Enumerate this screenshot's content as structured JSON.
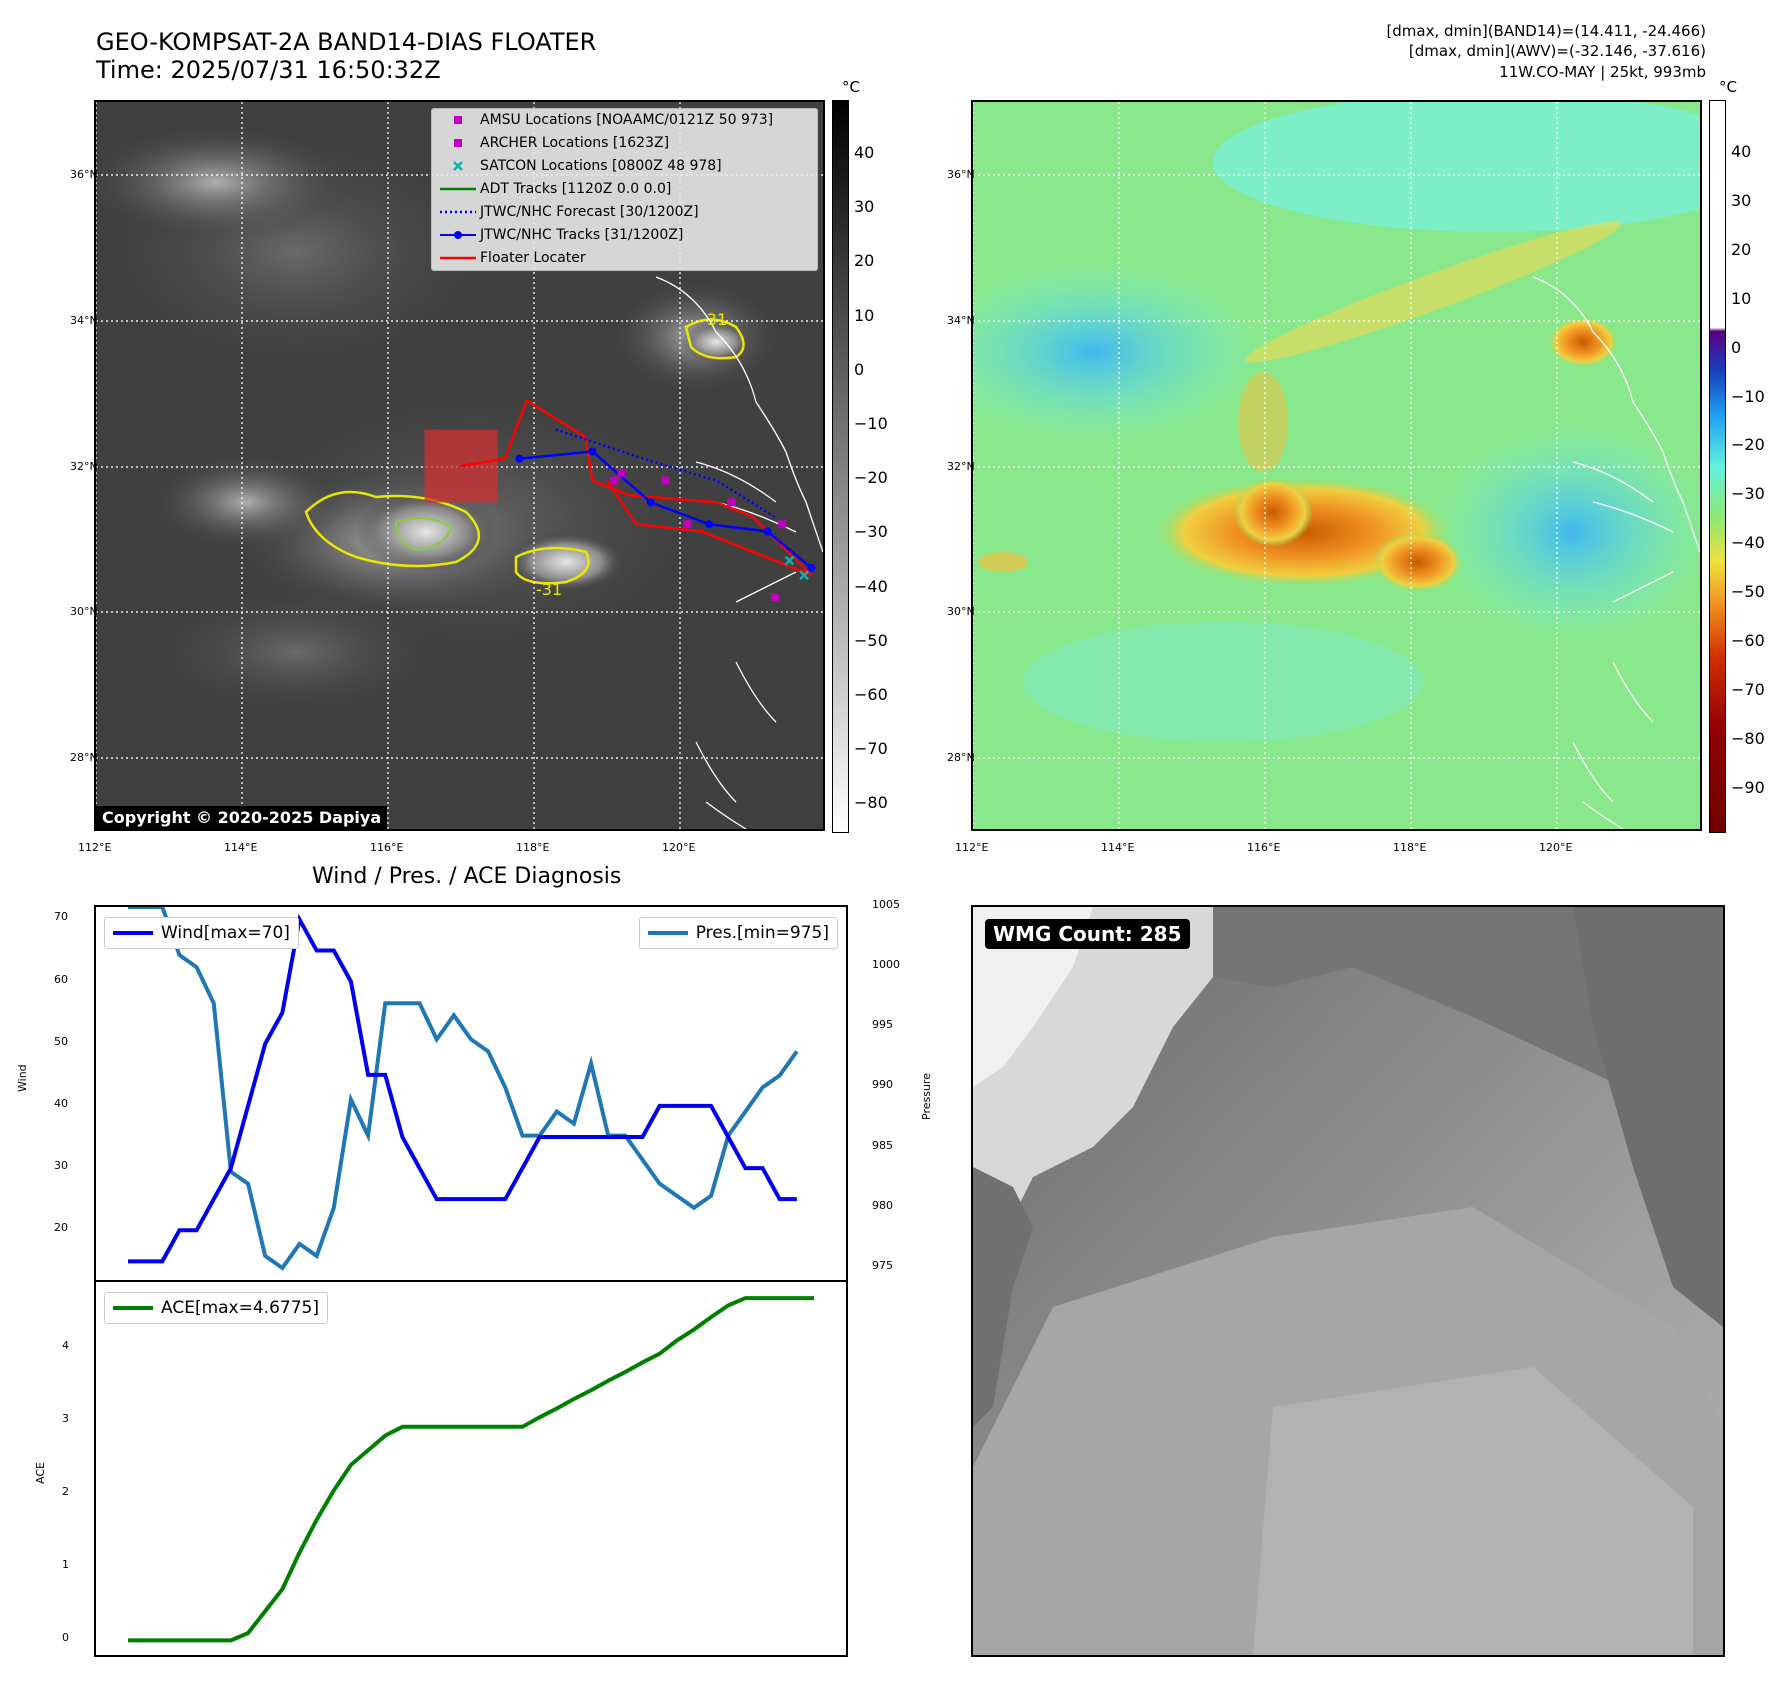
{
  "header": {
    "title_line1": "GEO-KOMPSAT-2A BAND14-DIAS FLOATER",
    "title_line2": "Time: 2025/07/31 16:50:32Z",
    "info_line1": "[dmax, dmin](BAND14)=(14.411, -24.466)",
    "info_line2": "[dmax, dmin](AWV)=(-32.146, -37.616)",
    "info_line3": "11W.CO-MAY | 25kt, 993mb"
  },
  "map_left": {
    "lon_ticks": [
      "112°E",
      "114°E",
      "116°E",
      "118°E",
      "120°E"
    ],
    "lat_ticks": [
      "36°N",
      "34°N",
      "32°N",
      "30°N",
      "28°N"
    ],
    "contour_labels": [
      "-31",
      "-31"
    ],
    "copyright": "Copyright © 2020-2025 Dapiya",
    "colorbar_unit": "°C",
    "colorbar_ticks": [
      "40",
      "30",
      "20",
      "10",
      "0",
      "−10",
      "−20",
      "−30",
      "−40",
      "−50",
      "−60",
      "−70",
      "−80"
    ],
    "legend": [
      {
        "label": "AMSU Locations [NOAAMC/0121Z 50 973]",
        "symbol": "square",
        "color": "#c000c0"
      },
      {
        "label": "ARCHER Locations [1623Z]",
        "symbol": "square",
        "color": "#c000c0"
      },
      {
        "label": "SATCON Locations [0800Z 48 978]",
        "symbol": "x",
        "color": "#10b0b0"
      },
      {
        "label": "ADT Tracks [1120Z 0.0 0.0]",
        "symbol": "line",
        "color": "#008000"
      },
      {
        "label": "JTWC/NHC Forecast [30/1200Z]",
        "symbol": "dotted",
        "color": "#0000ff"
      },
      {
        "label": "JTWC/NHC Tracks [31/1200Z]",
        "symbol": "line-dot",
        "color": "#0000ff"
      },
      {
        "label": "Floater Locater",
        "symbol": "line",
        "color": "#ff0000"
      }
    ],
    "jtwc_track": [
      [
        117.8,
        32.1
      ],
      [
        118.8,
        32.2
      ],
      [
        119.6,
        31.5
      ],
      [
        120.4,
        31.2
      ],
      [
        121.2,
        31.1
      ],
      [
        121.8,
        30.6
      ]
    ],
    "jtwc_forecast": [
      [
        118.3,
        32.5
      ],
      [
        119.5,
        32.1
      ],
      [
        120.5,
        31.8
      ],
      [
        121.3,
        31.3
      ]
    ],
    "floater_track": [
      [
        117.0,
        32.0
      ],
      [
        117.6,
        32.1
      ],
      [
        117.9,
        32.9
      ],
      [
        118.7,
        32.4
      ],
      [
        118.8,
        31.8
      ],
      [
        119.3,
        31.6
      ],
      [
        120.5,
        31.5
      ],
      [
        121.0,
        31.3
      ],
      [
        121.8,
        30.5
      ],
      [
        120.3,
        31.1
      ],
      [
        119.4,
        31.2
      ],
      [
        119.0,
        31.8
      ]
    ],
    "amsu_points": [
      [
        119.1,
        31.8
      ],
      [
        119.2,
        31.9
      ],
      [
        119.8,
        31.8
      ],
      [
        120.1,
        31.2
      ],
      [
        120.7,
        31.5
      ],
      [
        121.3,
        30.2
      ],
      [
        121.4,
        31.2
      ]
    ],
    "satcon_points": [
      [
        121.5,
        30.7
      ],
      [
        121.7,
        30.5
      ]
    ],
    "floater_box": {
      "lon": [
        116.5,
        117.5
      ],
      "lat": [
        31.5,
        32.5
      ]
    }
  },
  "map_right": {
    "lon_ticks": [
      "112°E",
      "114°E",
      "116°E",
      "118°E",
      "120°E"
    ],
    "lat_ticks": [
      "36°N",
      "34°N",
      "32°N",
      "30°N",
      "28°N"
    ],
    "colorbar_unit": "°C",
    "colorbar_ticks": [
      "40",
      "30",
      "20",
      "10",
      "0",
      "−10",
      "−20",
      "−30",
      "−40",
      "−50",
      "−60",
      "−70",
      "−80",
      "−90"
    ]
  },
  "diagnosis": {
    "title": "Wind / Pres. / ACE Diagnosis",
    "wind_legend": "Wind[max=70]",
    "pres_legend": "Pres.[min=975]",
    "ace_legend": "ACE[max=4.6775]",
    "wind_axis_label": "Wind",
    "pres_axis_label": "Pressure",
    "ace_axis_label": "ACE",
    "wind_ticks": [
      "70",
      "60",
      "50",
      "40",
      "30",
      "20"
    ],
    "pres_ticks": [
      "1005",
      "1000",
      "995",
      "990",
      "985",
      "980",
      "975"
    ],
    "ace_ticks": [
      "4",
      "3",
      "2",
      "1",
      "0"
    ],
    "wind_color": "#0000ee",
    "pres_color": "#1f77b4",
    "ace_color": "#008000"
  },
  "chart_data": [
    {
      "type": "line",
      "title": "Wind / Pres. / ACE Diagnosis",
      "ylabel": "Wind",
      "ylim": [
        12,
        72
      ],
      "x": [
        0,
        1,
        2,
        3,
        4,
        5,
        6,
        7,
        8,
        9,
        10,
        11,
        12,
        13,
        14,
        15,
        16,
        17,
        18,
        19,
        20,
        21,
        22,
        23,
        24,
        25,
        26,
        27,
        28,
        29,
        30,
        31,
        32,
        33,
        34,
        35,
        36,
        37,
        38,
        39,
        40
      ],
      "series": [
        {
          "name": "Wind[max=70]",
          "values": [
            15,
            15,
            15,
            20,
            20,
            25,
            30,
            40,
            50,
            55,
            70,
            65,
            65,
            60,
            45,
            45,
            35,
            30,
            25,
            25,
            25,
            25,
            25,
            30,
            35,
            35,
            35,
            35,
            35,
            35,
            35,
            40,
            40,
            40,
            40,
            35,
            30,
            30,
            25,
            25,
            null
          ]
        }
      ]
    },
    {
      "type": "line",
      "ylabel": "Pressure",
      "ylim": [
        974,
        1005
      ],
      "x": [
        0,
        1,
        2,
        3,
        4,
        5,
        6,
        7,
        8,
        9,
        10,
        11,
        12,
        13,
        14,
        15,
        16,
        17,
        18,
        19,
        20,
        21,
        22,
        23,
        24,
        25,
        26,
        27,
        28,
        29,
        30,
        31,
        32,
        33,
        34,
        35,
        36,
        37,
        38,
        39,
        40
      ],
      "series": [
        {
          "name": "Pres.[min=975]",
          "values": [
            1005,
            1005,
            1005,
            1001,
            1000,
            997,
            983,
            982,
            976,
            975,
            977,
            976,
            980,
            989,
            986,
            997,
            997,
            997,
            994,
            996,
            994,
            993,
            990,
            986,
            986,
            988,
            987,
            992,
            986,
            986,
            984,
            982,
            981,
            980,
            981,
            986,
            988,
            990,
            991,
            993,
            null
          ]
        }
      ]
    },
    {
      "type": "line",
      "ylabel": "ACE",
      "ylim": [
        -0.2,
        4.9
      ],
      "x": [
        0,
        1,
        2,
        3,
        4,
        5,
        6,
        7,
        8,
        9,
        10,
        11,
        12,
        13,
        14,
        15,
        16,
        17,
        18,
        19,
        20,
        21,
        22,
        23,
        24,
        25,
        26,
        27,
        28,
        29,
        30,
        31,
        32,
        33,
        34,
        35,
        36,
        37,
        38,
        39,
        40
      ],
      "series": [
        {
          "name": "ACE[max=4.6775]",
          "values": [
            0,
            0,
            0,
            0,
            0,
            0,
            0,
            0.1,
            0.4,
            0.7,
            1.2,
            1.65,
            2.05,
            2.4,
            2.6,
            2.8,
            2.92,
            2.92,
            2.92,
            2.92,
            2.92,
            2.92,
            2.92,
            2.92,
            3.05,
            3.17,
            3.3,
            3.42,
            3.55,
            3.67,
            3.8,
            3.92,
            4.1,
            4.25,
            4.42,
            4.58,
            4.68,
            4.68,
            4.68,
            4.68,
            4.68
          ]
        }
      ]
    }
  ],
  "wmg_panel": {
    "label": "WMG Count: 285"
  }
}
